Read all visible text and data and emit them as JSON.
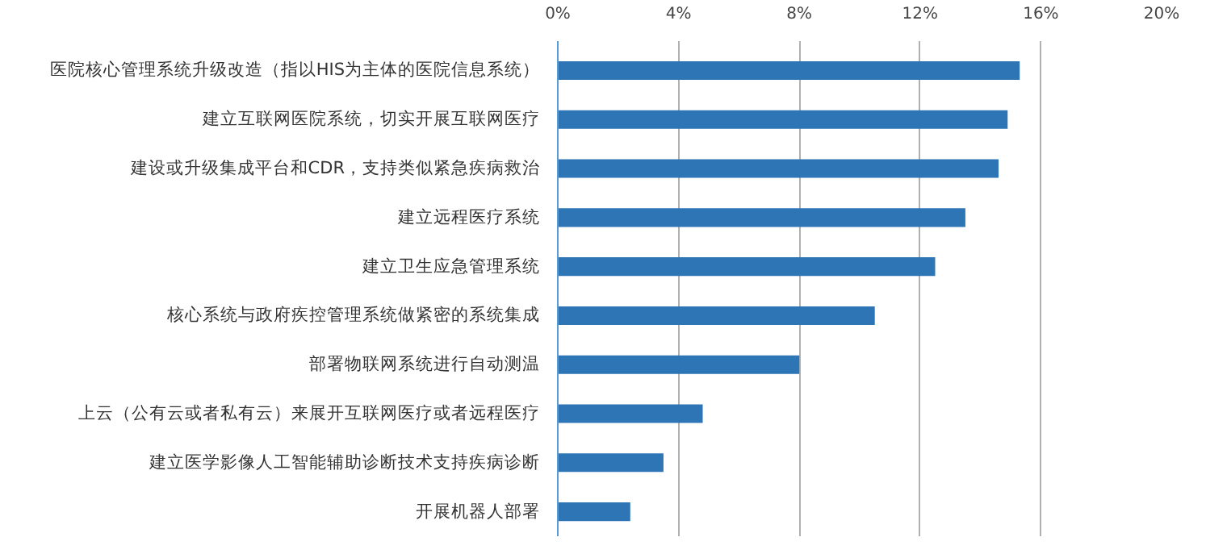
{
  "chart_data": {
    "type": "bar",
    "orientation": "horizontal",
    "categories": [
      "医院核心管理系统升级改造（指以HIS为主体的医院信息系统）",
      "建立互联网医院系统，切实开展互联网医疗",
      "建设或升级集成平台和CDR，支持类似紧急疾病救治",
      "建立远程医疗系统",
      "建立卫生应急管理系统",
      "核心系统与政府疾控管理系统做紧密的系统集成",
      "部署物联网系统进行自动测温",
      "上云（公有云或者私有云）来展开互联网医疗或者远程医疗",
      "建立医学影像人工智能辅助诊断技术支持疾病诊断",
      "开展机器人部署"
    ],
    "values": [
      15.3,
      14.9,
      14.6,
      13.5,
      12.5,
      10.5,
      8.0,
      4.8,
      3.5,
      2.4
    ],
    "color": "#2e75b6",
    "xlim": [
      0,
      20
    ],
    "xticks": [
      {
        "value": 0,
        "label": "0%"
      },
      {
        "value": 4,
        "label": "4%"
      },
      {
        "value": 8,
        "label": "8%"
      },
      {
        "value": 12,
        "label": "12%"
      },
      {
        "value": 16,
        "label": "16%"
      },
      {
        "value": 20,
        "label": "20%"
      }
    ],
    "grid": "x"
  }
}
